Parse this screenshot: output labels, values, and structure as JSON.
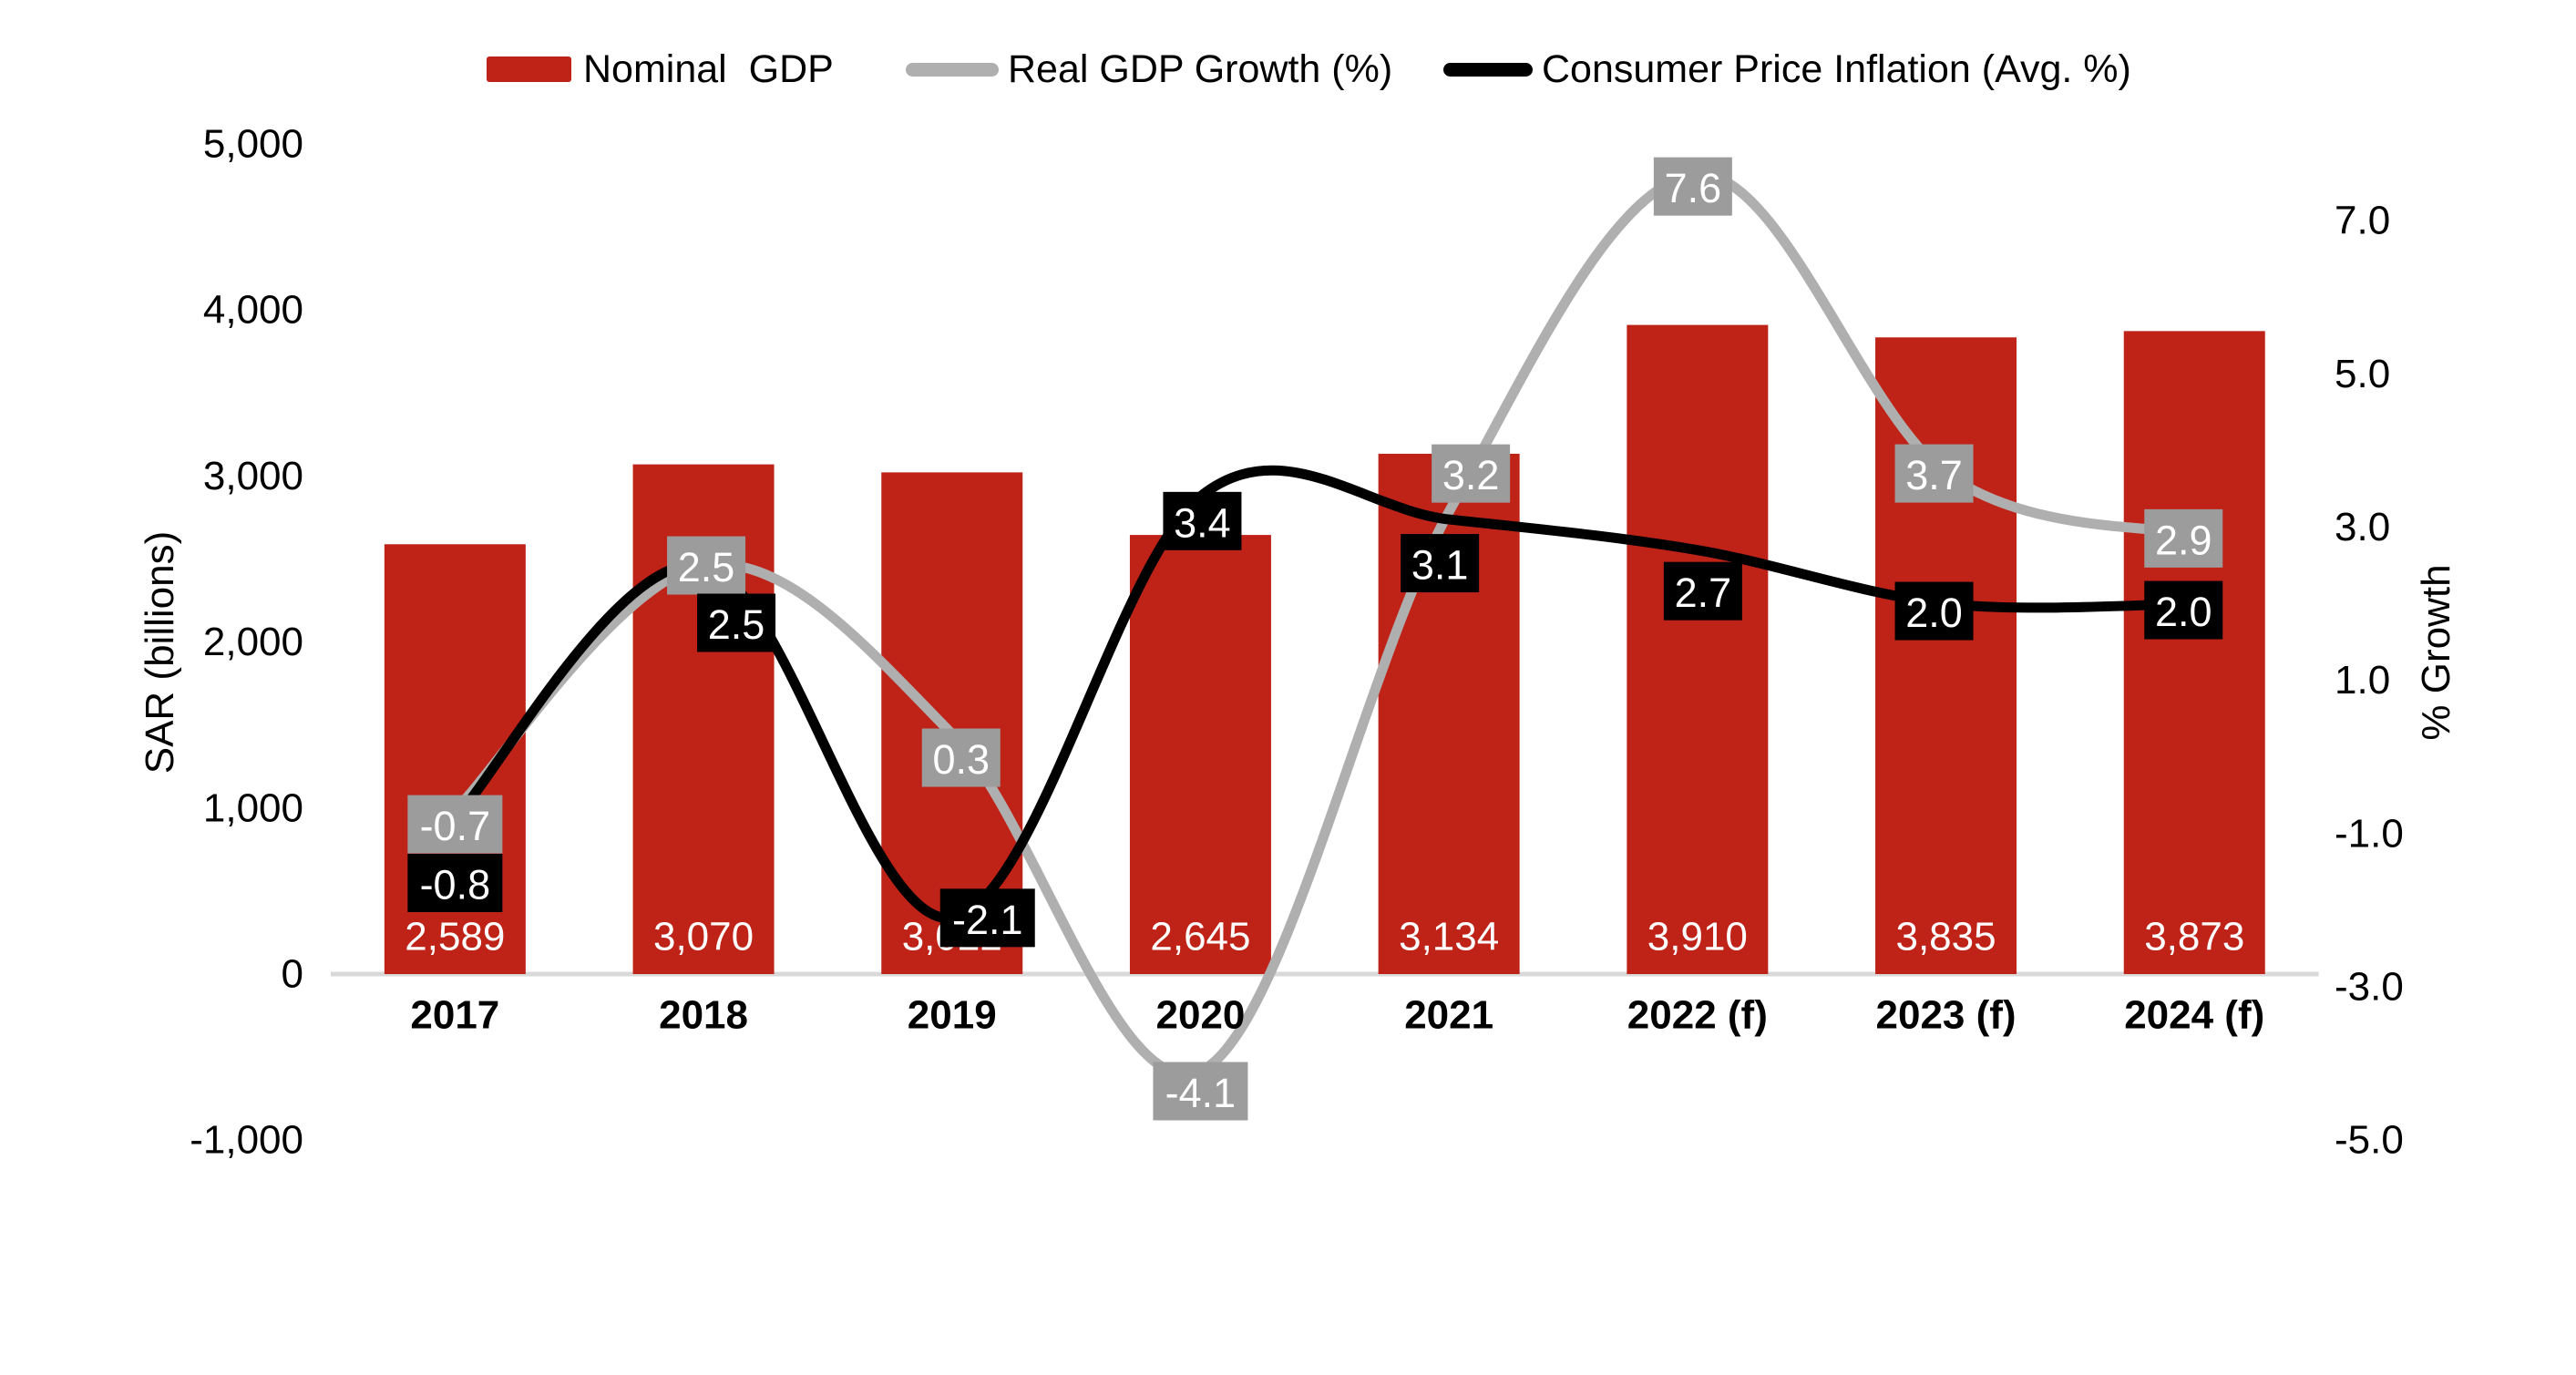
{
  "legend": {
    "items": [
      {
        "label": "Nominal  GDP",
        "marker": "bar-swatch"
      },
      {
        "label": "Real GDP Growth (%)",
        "marker": "line-swatch"
      },
      {
        "label": "Consumer Price Inflation (Avg. %)",
        "marker": "line-swatch"
      }
    ]
  },
  "axes": {
    "left": {
      "title": "SAR (billions)",
      "ticks": [
        "5,000",
        "4,000",
        "3,000",
        "2,000",
        "1,000",
        "0",
        "-1,000"
      ]
    },
    "right": {
      "title": "% Growth",
      "ticks": [
        "7.0",
        "5.0",
        "3.0",
        "1.0",
        "-1.0",
        "-3.0",
        "-5.0"
      ]
    }
  },
  "colors": {
    "bar": "#BF2318",
    "gray_line": "#AFAFAF",
    "gray_label_bg": "#9C9C9C",
    "black_line": "#000000",
    "black_label_bg": "#000000",
    "label_text": "#FFFFFF",
    "baseline": "#D9D9D9",
    "axis_text": "#000000"
  },
  "chart_data": {
    "type": "combo",
    "categories": [
      "2017",
      "2018",
      "2019",
      "2020",
      "2021",
      "2022 (f)",
      "2023 (f)",
      "2024 (f)"
    ],
    "series": [
      {
        "name": "Nominal  GDP",
        "type": "bar",
        "axis": "left",
        "values": [
          2589,
          3070,
          3022,
          2645,
          3134,
          3910,
          3835,
          3873
        ],
        "data_labels": [
          "2,589",
          "3,070",
          "3,022",
          "2,645",
          "3,134",
          "3,910",
          "3,835",
          "3,873"
        ]
      },
      {
        "name": "Real GDP Growth (%)",
        "type": "line",
        "smooth": true,
        "axis": "right",
        "values": [
          -0.7,
          2.5,
          0.3,
          -4.1,
          3.2,
          7.6,
          3.7,
          2.9
        ],
        "data_labels": [
          "-0.7",
          "2.5",
          "0.3",
          "-4.1",
          "3.2",
          "7.6",
          "3.7",
          "2.9"
        ]
      },
      {
        "name": "Consumer Price Inflation (Avg. %)",
        "type": "line",
        "smooth": true,
        "axis": "right",
        "values": [
          -0.8,
          2.5,
          -2.1,
          3.4,
          3.1,
          2.7,
          2.0,
          2.0
        ],
        "data_labels": [
          "-0.8",
          "2.5",
          "-2.1",
          "3.4",
          "3.1",
          "2.7",
          "2.0",
          "2.0"
        ]
      }
    ],
    "xlabel": "",
    "ylabel_left": "SAR (billions)",
    "ylabel_right": "% Growth",
    "ylim_left": [
      -1000,
      5000
    ],
    "ylim_right": [
      -5,
      8
    ],
    "grid": false,
    "legend_position": "top"
  }
}
